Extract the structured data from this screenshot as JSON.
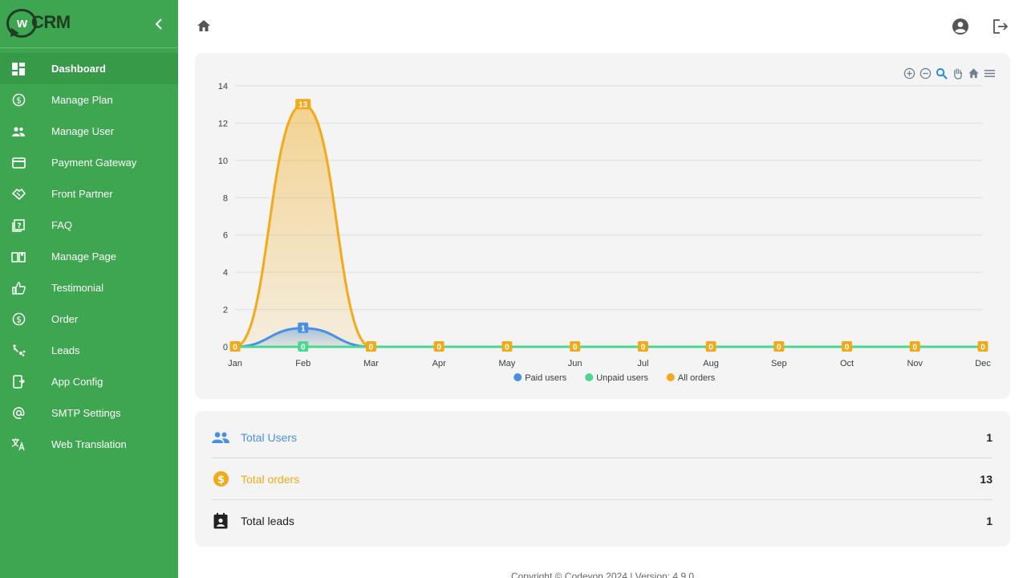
{
  "brand": {
    "logo_text": "wCRM"
  },
  "sidebar": {
    "items": [
      {
        "label": "Dashboard",
        "icon": "dashboard-icon",
        "active": true
      },
      {
        "label": "Manage Plan",
        "icon": "dollar-circle-icon"
      },
      {
        "label": "Manage User",
        "icon": "users-icon"
      },
      {
        "label": "Payment Gateway",
        "icon": "credit-card-icon"
      },
      {
        "label": "Front Partner",
        "icon": "handshake-icon"
      },
      {
        "label": "FAQ",
        "icon": "faq-icon"
      },
      {
        "label": "Manage Page",
        "icon": "book-icon"
      },
      {
        "label": "Testimonial",
        "icon": "thumbs-up-icon"
      },
      {
        "label": "Order",
        "icon": "dollar-circle-icon"
      },
      {
        "label": "Leads",
        "icon": "leads-icon"
      },
      {
        "label": "App Config",
        "icon": "app-config-icon"
      },
      {
        "label": "SMTP Settings",
        "icon": "at-sign-icon"
      },
      {
        "label": "Web Translation",
        "icon": "translate-icon"
      }
    ]
  },
  "chart_data": {
    "type": "area",
    "categories": [
      "Jan",
      "Feb",
      "Mar",
      "Apr",
      "May",
      "Jun",
      "Jul",
      "Aug",
      "Sep",
      "Oct",
      "Nov",
      "Dec"
    ],
    "ylim": [
      0,
      14
    ],
    "yticks": [
      0,
      2,
      4,
      6,
      8,
      10,
      12,
      14
    ],
    "grid": true,
    "legend_position": "bottom",
    "series": [
      {
        "name": "Paid users",
        "color": "#4a90e2",
        "values": [
          0,
          1,
          0,
          0,
          0,
          0,
          0,
          0,
          0,
          0,
          0,
          0
        ]
      },
      {
        "name": "Unpaid users",
        "color": "#4cd98f",
        "values": [
          0,
          0,
          0,
          0,
          0,
          0,
          0,
          0,
          0,
          0,
          0,
          0
        ]
      },
      {
        "name": "All orders",
        "color": "#f2aa1a",
        "values": [
          0,
          13,
          0,
          0,
          0,
          0,
          0,
          0,
          0,
          0,
          0,
          0
        ]
      }
    ]
  },
  "stats": [
    {
      "label": "Total Users",
      "value": "1",
      "color": "#4a90e2",
      "icon": "users-icon"
    },
    {
      "label": "Total orders",
      "value": "13",
      "color": "#f2aa1a",
      "icon": "dollar-circle-icon"
    },
    {
      "label": "Total leads",
      "value": "1",
      "color": "#222222",
      "icon": "contact-card-icon"
    }
  ],
  "footer": {
    "text": "Copyright © Codeyon 2024 | Version: 4.9.0"
  }
}
